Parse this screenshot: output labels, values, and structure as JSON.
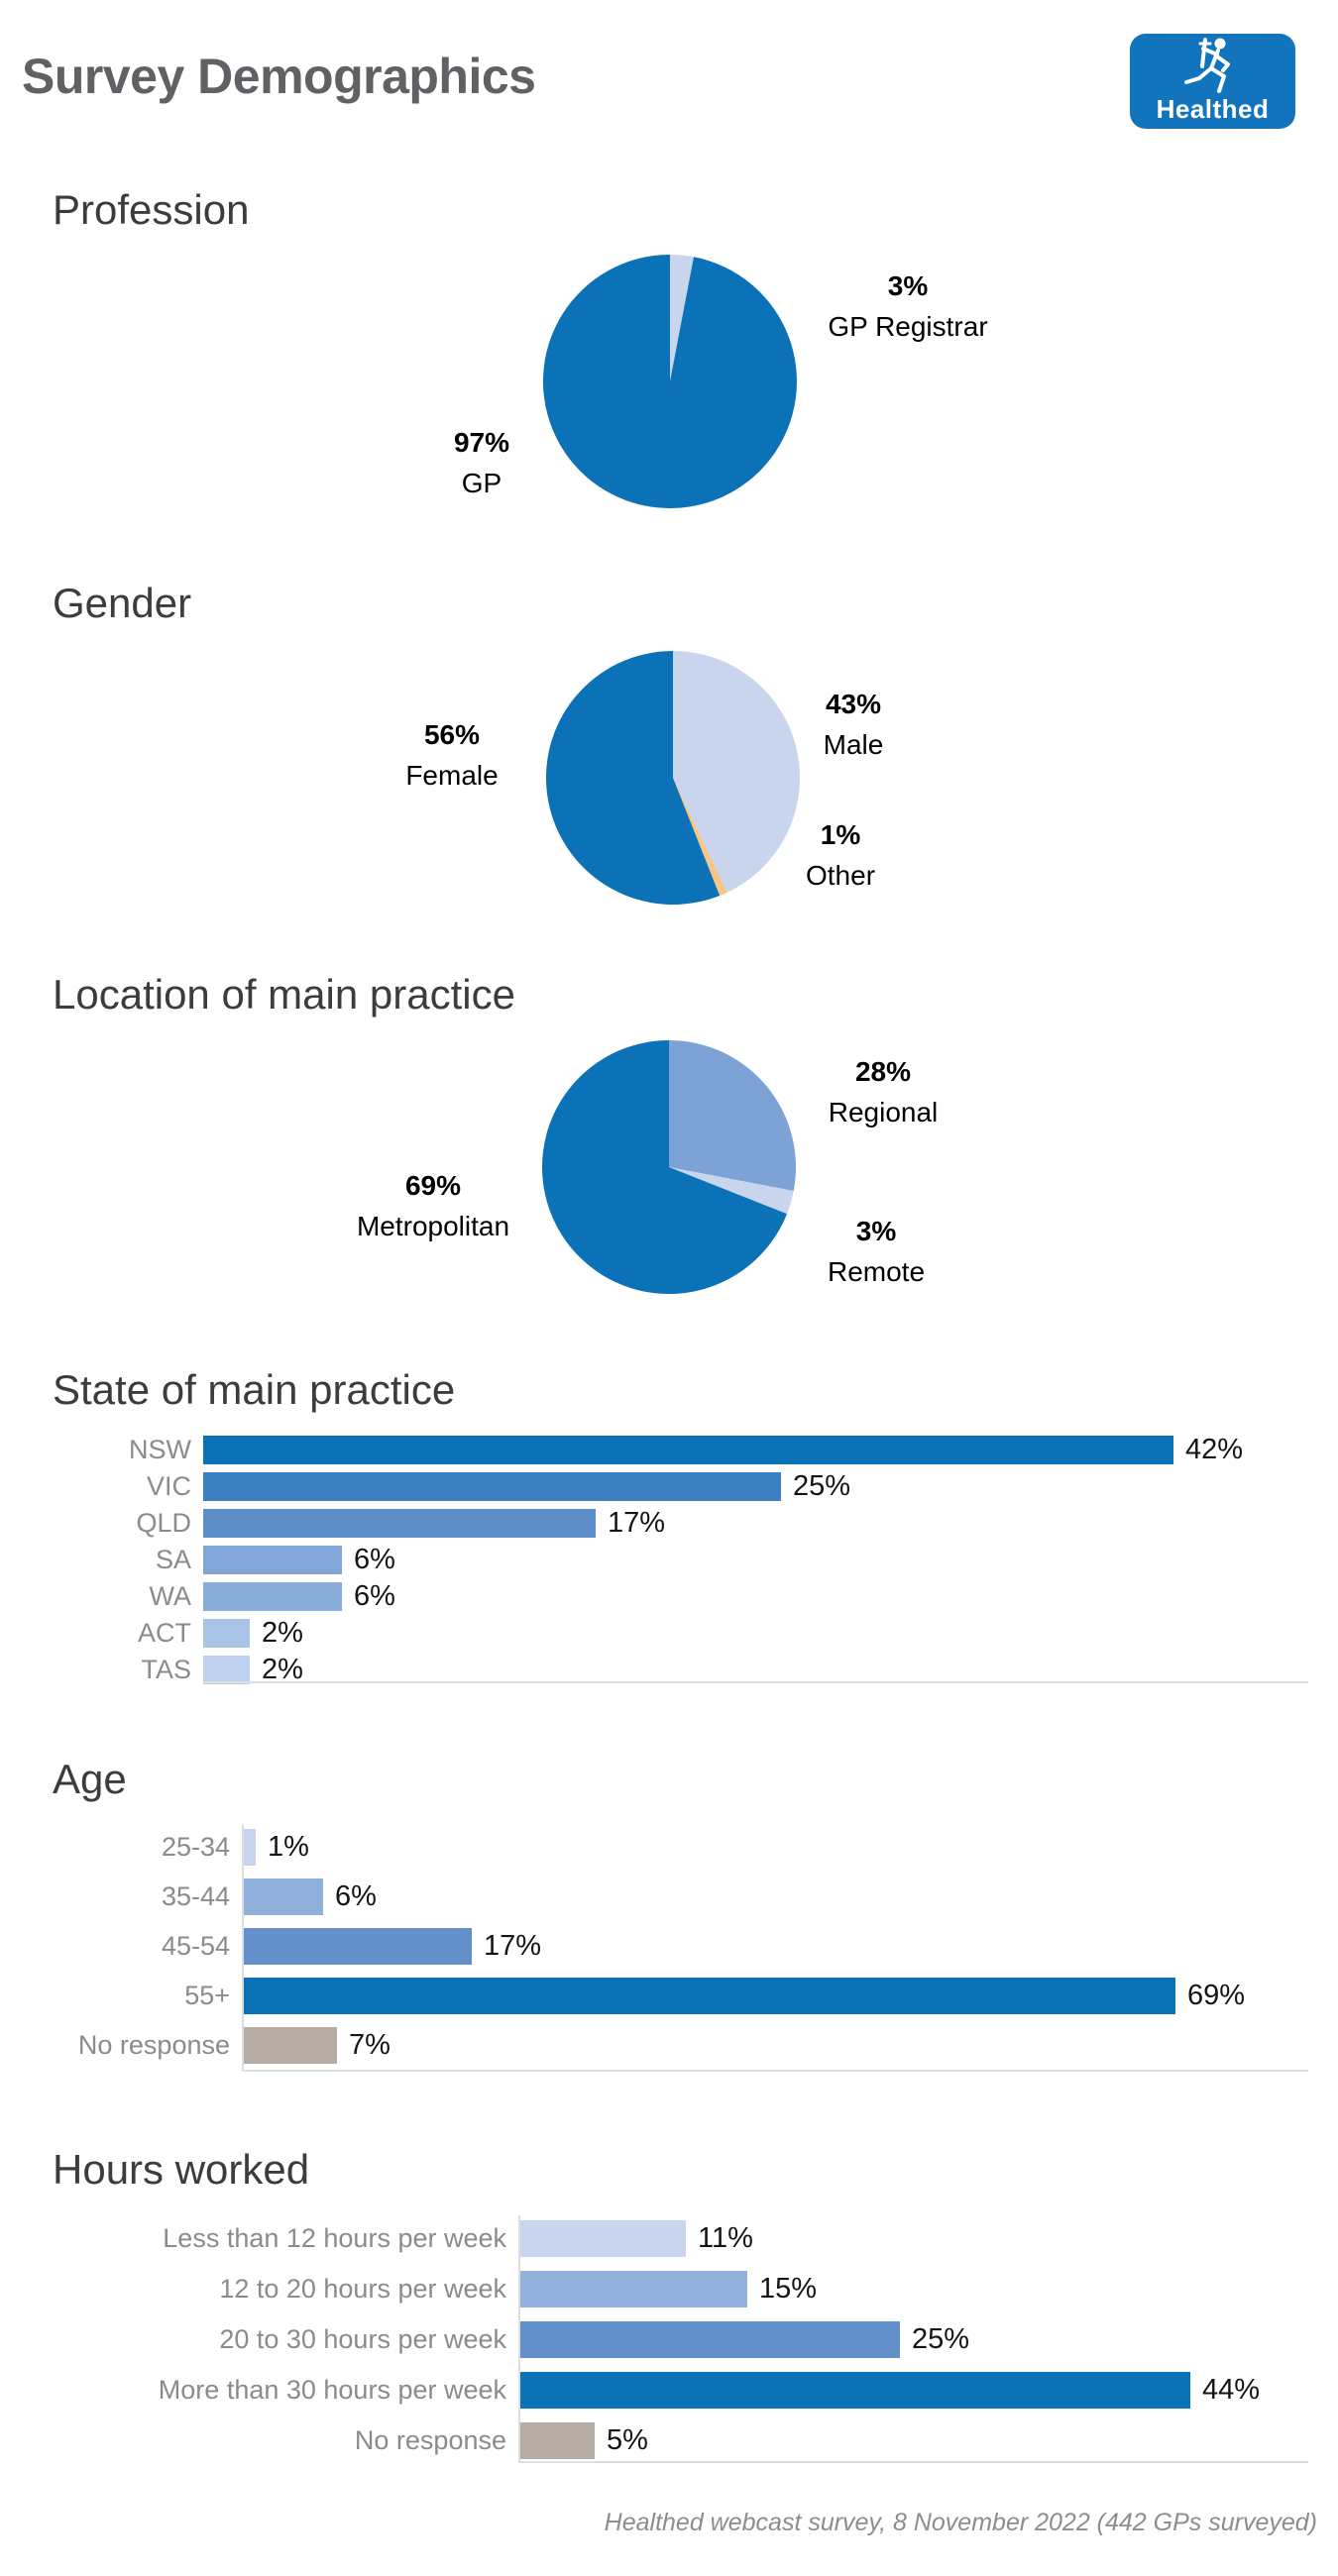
{
  "page": {
    "title": "Survey Demographics",
    "footer": "Healthed webcast survey, 8 November 2022 (442 GPs surveyed)"
  },
  "logo": {
    "text": "Healthed",
    "bg_color": "#1274bd",
    "icon": "hermes-caduceus-runner"
  },
  "palette": {
    "primary_blue": "#0b72b8",
    "medium_blue": "#6390cb",
    "light_periwinkle": "#c8d5ec",
    "accent_orange": "#f9c484",
    "neutral_taupe": "#b5aca3",
    "label_gray": "#8b8b8b",
    "heading_gray": "#3b3c3e"
  },
  "chart_data": [
    {
      "type": "pie",
      "title": "Profession",
      "start": "top",
      "direction": "clockwise",
      "value_labels": "outside",
      "slices": [
        {
          "label": "GP Registrar",
          "value": 3,
          "display": "3%",
          "color": "#c8d5ec"
        },
        {
          "label": "GP",
          "value": 97,
          "display": "97%",
          "color": "#0b72b8"
        }
      ]
    },
    {
      "type": "pie",
      "title": "Gender",
      "start": "top",
      "direction": "clockwise",
      "value_labels": "outside",
      "slices": [
        {
          "label": "Male",
          "value": 43,
          "display": "43%",
          "color": "#c8d5ec"
        },
        {
          "label": "Other",
          "value": 1,
          "display": "1%",
          "color": "#f9c484"
        },
        {
          "label": "Female",
          "value": 56,
          "display": "56%",
          "color": "#0b72b8"
        }
      ]
    },
    {
      "type": "pie",
      "title": "Location of main practice",
      "start": "top",
      "direction": "clockwise",
      "value_labels": "outside",
      "slices": [
        {
          "label": "Regional",
          "value": 28,
          "display": "28%",
          "color": "#7da3d6"
        },
        {
          "label": "Remote",
          "value": 3,
          "display": "3%",
          "color": "#c8d5ec"
        },
        {
          "label": "Metropolitan",
          "value": 69,
          "display": "69%",
          "color": "#0b72b8"
        }
      ]
    },
    {
      "type": "bar",
      "title": "State of main practice",
      "orientation": "horizontal",
      "unit": "%",
      "xlim": [
        0,
        45
      ],
      "grid": false,
      "value_labels": "outside-end",
      "categories": [
        "NSW",
        "VIC",
        "QLD",
        "SA",
        "WA",
        "ACT",
        "TAS"
      ],
      "values": [
        42,
        25,
        17,
        6,
        6,
        2,
        2
      ],
      "colors": [
        "#0b72b8",
        "#3c80c2",
        "#5c8fc9",
        "#82a6d7",
        "#8badda",
        "#a9c3e7",
        "#bdd0ed"
      ]
    },
    {
      "type": "bar",
      "title": "Age",
      "orientation": "horizontal",
      "unit": "%",
      "xlim": [
        0,
        72
      ],
      "grid": false,
      "value_labels": "outside-end",
      "categories": [
        "25-34",
        "35-44",
        "45-54",
        "55+",
        "No response"
      ],
      "values": [
        1,
        6,
        17,
        69,
        7
      ],
      "colors": [
        "#c8d5ec",
        "#8fb0dc",
        "#6390cb",
        "#0b72b8",
        "#b5aca3"
      ]
    },
    {
      "type": "bar",
      "title": "Hours worked",
      "orientation": "horizontal",
      "unit": "%",
      "xlim": [
        0,
        48
      ],
      "grid": false,
      "value_labels": "outside-end",
      "categories": [
        "Less than 12 hours per week",
        "12 to 20 hours per week",
        "20 to 30 hours per week",
        "More than 30 hours per week",
        "No response"
      ],
      "values": [
        11,
        15,
        25,
        44,
        5
      ],
      "colors": [
        "#c8d5ec",
        "#92b2dd",
        "#6390cb",
        "#0b72b8",
        "#b5aca3"
      ]
    }
  ]
}
